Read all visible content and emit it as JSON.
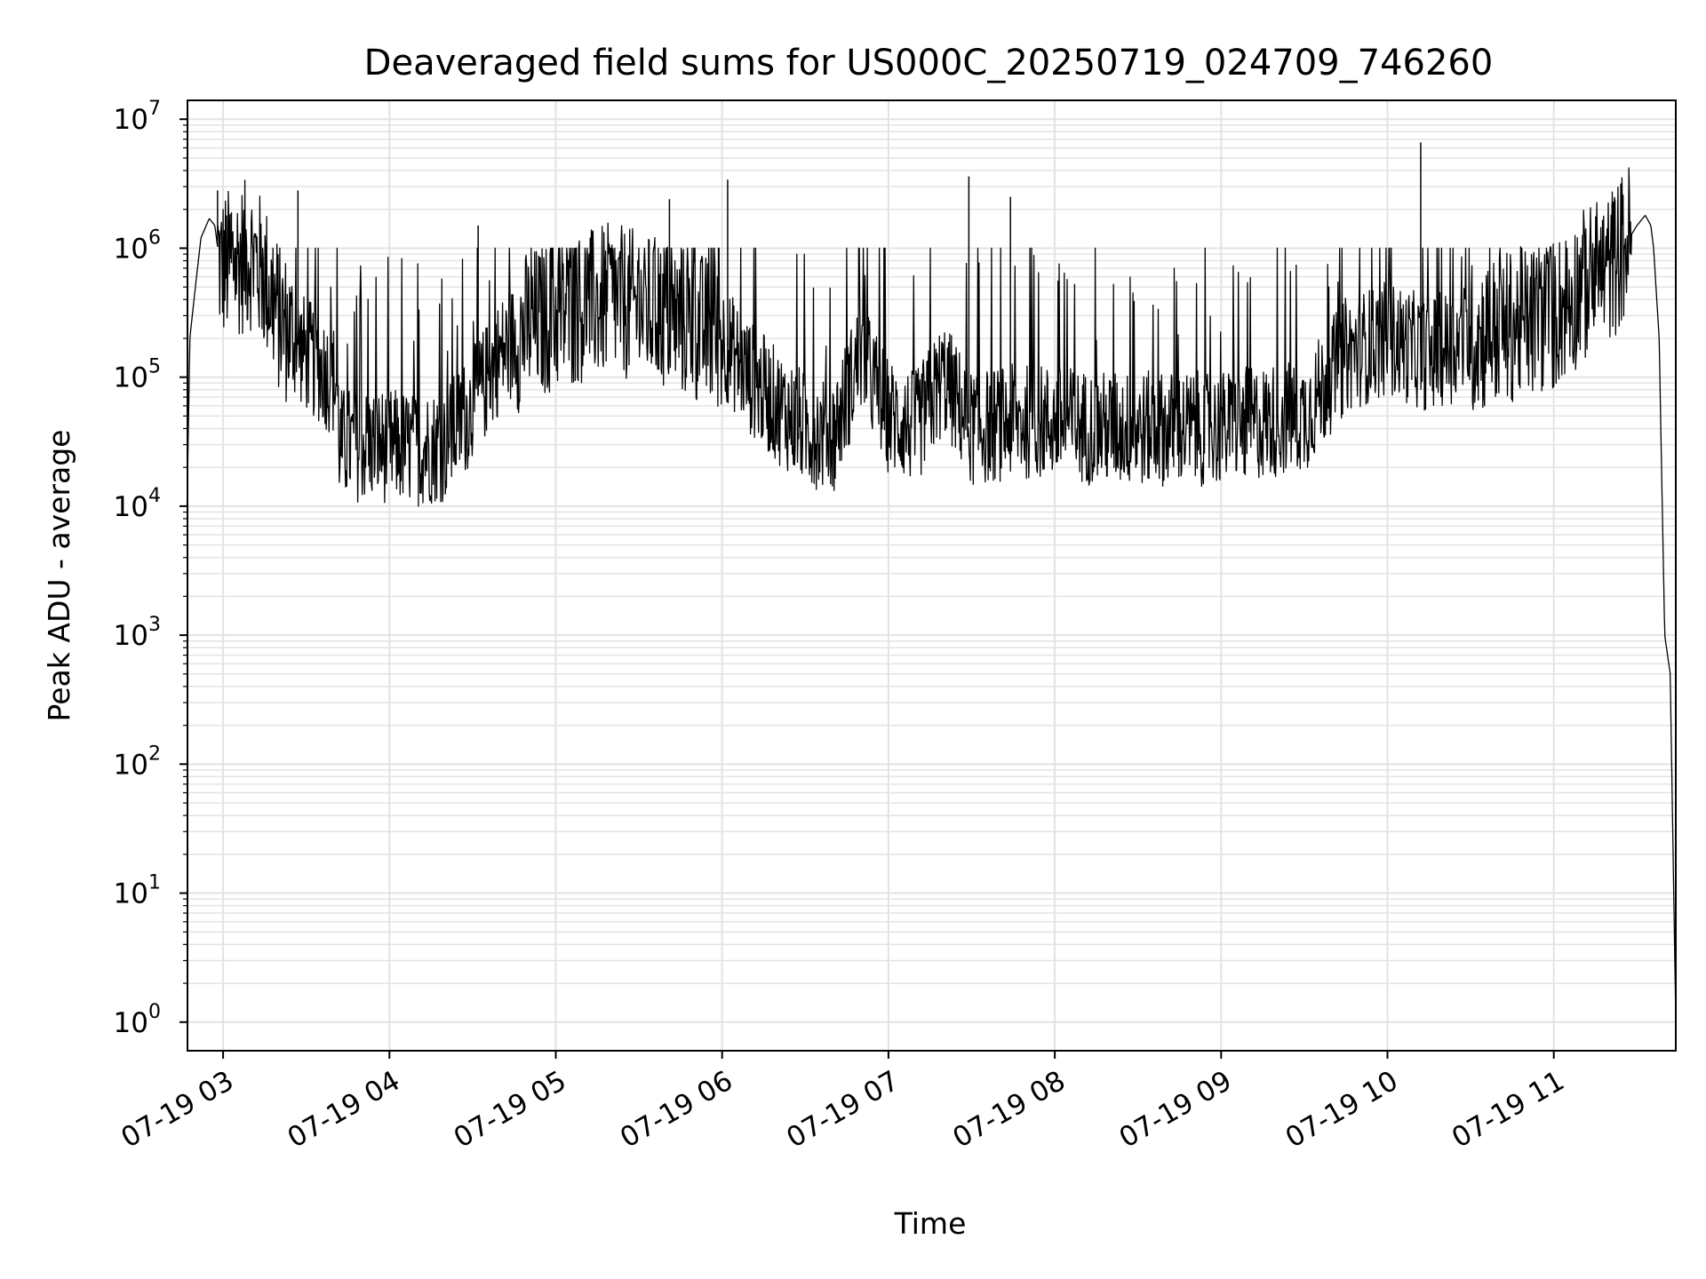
{
  "chart_data": {
    "type": "line",
    "title": "Deaveraged field sums for US000C_20250719_024709_746260",
    "xlabel": "Time",
    "ylabel": "Peak ADU - average",
    "yscale": "log",
    "ylim": [
      0.6,
      14000000
    ],
    "xlim": [
      "2025-07-19 02:47:09",
      "2025-07-19 11:44:00"
    ],
    "grid": true,
    "line_color": "#000000",
    "x_ticks": [
      {
        "label": "07-19 03",
        "value": "2025-07-19 03:00"
      },
      {
        "label": "07-19 04",
        "value": "2025-07-19 04:00"
      },
      {
        "label": "07-19 05",
        "value": "2025-07-19 05:00"
      },
      {
        "label": "07-19 06",
        "value": "2025-07-19 06:00"
      },
      {
        "label": "07-19 07",
        "value": "2025-07-19 07:00"
      },
      {
        "label": "07-19 08",
        "value": "2025-07-19 08:00"
      },
      {
        "label": "07-19 09",
        "value": "2025-07-19 09:00"
      },
      {
        "label": "07-19 10",
        "value": "2025-07-19 10:00"
      },
      {
        "label": "07-19 11",
        "value": "2025-07-19 11:00"
      }
    ],
    "y_ticks": [
      {
        "base": "10",
        "exp": "0",
        "value": 1
      },
      {
        "base": "10",
        "exp": "1",
        "value": 10
      },
      {
        "base": "10",
        "exp": "2",
        "value": 100
      },
      {
        "base": "10",
        "exp": "3",
        "value": 1000
      },
      {
        "base": "10",
        "exp": "4",
        "value": 10000
      },
      {
        "base": "10",
        "exp": "5",
        "value": 100000
      },
      {
        "base": "10",
        "exp": "6",
        "value": 1000000
      },
      {
        "base": "10",
        "exp": "7",
        "value": 10000000
      }
    ],
    "series": [
      {
        "x": [
          "2025-07-19 02:47",
          "2025-07-19 02:48",
          "2025-07-19 02:50",
          "2025-07-19 02:52",
          "2025-07-19 02:55",
          "2025-07-19 02:57",
          "2025-07-19 02:59",
          "2025-07-19 03:05",
          "2025-07-19 03:10",
          "2025-07-19 03:15",
          "2025-07-19 03:20",
          "2025-07-19 03:25",
          "2025-07-19 03:30",
          "2025-07-19 03:35",
          "2025-07-19 03:41",
          "2025-07-19 03:42",
          "2025-07-19 03:55",
          "2025-07-19 04:10",
          "2025-07-19 04:20",
          "2025-07-19 04:30",
          "2025-07-19 04:40",
          "2025-07-19 04:50",
          "2025-07-19 05:00",
          "2025-07-19 05:10",
          "2025-07-19 05:20",
          "2025-07-19 05:30",
          "2025-07-19 05:40",
          "2025-07-19 05:50",
          "2025-07-19 06:00",
          "2025-07-19 06:10",
          "2025-07-19 06:20",
          "2025-07-19 06:30",
          "2025-07-19 06:40",
          "2025-07-19 06:50",
          "2025-07-19 07:00",
          "2025-07-19 07:10",
          "2025-07-19 07:20",
          "2025-07-19 07:30",
          "2025-07-19 07:45",
          "2025-07-19 08:00",
          "2025-07-19 08:15",
          "2025-07-19 08:30",
          "2025-07-19 08:45",
          "2025-07-19 09:00",
          "2025-07-19 09:15",
          "2025-07-19 09:30",
          "2025-07-19 09:45",
          "2025-07-19 10:00",
          "2025-07-19 10:15",
          "2025-07-19 10:30",
          "2025-07-19 10:45",
          "2025-07-19 11:00",
          "2025-07-19 11:10",
          "2025-07-19 11:20",
          "2025-07-19 11:25",
          "2025-07-19 11:30",
          "2025-07-19 11:33",
          "2025-07-19 11:35",
          "2025-07-19 11:36",
          "2025-07-19 11:38",
          "2025-07-19 11:40",
          "2025-07-19 11:42",
          "2025-07-19 11:44"
        ],
        "y": [
          10000,
          200000,
          500000,
          1200000,
          1700000,
          1500000,
          700000,
          800000,
          900000,
          600000,
          300000,
          200000,
          150000,
          120000,
          90000,
          30000,
          30000,
          28000,
          30000,
          60000,
          150000,
          250000,
          300000,
          350000,
          400000,
          350000,
          300000,
          250000,
          200000,
          100000,
          60000,
          40000,
          35000,
          150000,
          50000,
          40000,
          100000,
          40000,
          45000,
          45000,
          40000,
          40000,
          40000,
          40000,
          45000,
          50000,
          150000,
          200000,
          150000,
          200000,
          250000,
          300000,
          500000,
          700000,
          1000000,
          1500000,
          1800000,
          1500000,
          1000000,
          200000,
          1000,
          500,
          1
        ]
      }
    ],
    "spikes": [
      {
        "x": "2025-07-19 02:58",
        "y": 2800000
      },
      {
        "x": "2025-07-19 03:03",
        "y": 1900000
      },
      {
        "x": "2025-07-19 03:27",
        "y": 2800000
      },
      {
        "x": "2025-07-19 04:32",
        "y": 1500000
      },
      {
        "x": "2025-07-19 05:41",
        "y": 2400000
      },
      {
        "x": "2025-07-19 06:02",
        "y": 3400000
      },
      {
        "x": "2025-07-19 07:29",
        "y": 3600000
      },
      {
        "x": "2025-07-19 07:44",
        "y": 2500000
      },
      {
        "x": "2025-07-19 10:12",
        "y": 6600000
      },
      {
        "x": "2025-07-19 11:21",
        "y": 2200000
      }
    ]
  }
}
